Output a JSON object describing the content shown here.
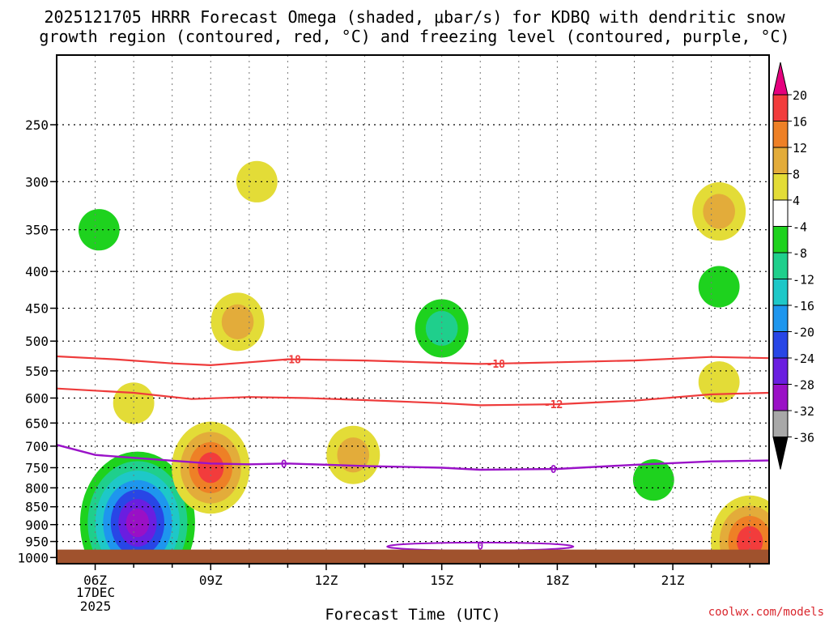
{
  "chart_data": {
    "type": "heatmap",
    "title_lines": [
      "2025121705 HRRR Forecast Omega (shaded, μbar/s) for KDBQ with dendritic snow",
      "growth region (contoured, red, °C) and freezing level (contoured, purple, °C)"
    ],
    "xlabel": "Forecast Time (UTC)",
    "ylabel": "",
    "credit": "coolwx.com/models",
    "x_ticks": [
      "06Z",
      "09Z",
      "12Z",
      "15Z",
      "18Z",
      "21Z"
    ],
    "x_date_label": [
      "17DEC",
      "2025"
    ],
    "x_range_hours": [
      5,
      23.5
    ],
    "y_ticks": [
      "250",
      "300",
      "350",
      "400",
      "450",
      "500",
      "550",
      "600",
      "650",
      "700",
      "750",
      "800",
      "850",
      "900",
      "950",
      "1000"
    ],
    "y_range_hpa": [
      200,
      1020
    ],
    "y_scale": "log-pressure",
    "grid": true,
    "colorbar": {
      "labels": [
        "20",
        "16",
        "12",
        "8",
        "4",
        "-4",
        "-8",
        "-12",
        "-16",
        "-20",
        "-24",
        "-28",
        "-32",
        "-36"
      ],
      "colors": [
        "#e5007e",
        "#f23c3c",
        "#ee8026",
        "#e3ac3a",
        "#e3dc37",
        "#ffffff",
        "#1ed21e",
        "#1fcf8c",
        "#1ec8c8",
        "#1e96ee",
        "#2846e6",
        "#6a1ee0",
        "#9a10c6",
        "#a8a8a8",
        "#000000"
      ]
    },
    "omega_regions": [
      {
        "time_h": 6.1,
        "pressure_hpa": 350,
        "omega": -6
      },
      {
        "time_h": 7.0,
        "pressure_hpa": 610,
        "omega": 6
      },
      {
        "time_h": 7.1,
        "pressure_hpa": 895,
        "omega": -30
      },
      {
        "time_h": 9.0,
        "pressure_hpa": 750,
        "omega": 18
      },
      {
        "time_h": 10.2,
        "pressure_hpa": 300,
        "omega": 6
      },
      {
        "time_h": 9.7,
        "pressure_hpa": 470,
        "omega": 10
      },
      {
        "time_h": 12.7,
        "pressure_hpa": 720,
        "omega": 10
      },
      {
        "time_h": 15.0,
        "pressure_hpa": 480,
        "omega": -10
      },
      {
        "time_h": 22.2,
        "pressure_hpa": 330,
        "omega": 10
      },
      {
        "time_h": 22.2,
        "pressure_hpa": 420,
        "omega": -6
      },
      {
        "time_h": 22.2,
        "pressure_hpa": 570,
        "omega": 6
      },
      {
        "time_h": 20.5,
        "pressure_hpa": 780,
        "omega": -6
      },
      {
        "time_h": 23.0,
        "pressure_hpa": 950,
        "omega": 18
      }
    ],
    "dendritic_contours": [
      {
        "label": "-18",
        "temp_c": -18,
        "label_time_h": 11.1,
        "label2_time_h": 16.4,
        "points": [
          [
            5.0,
            525
          ],
          [
            6.5,
            530
          ],
          [
            8,
            537
          ],
          [
            9,
            540
          ],
          [
            10,
            535
          ],
          [
            11,
            530
          ],
          [
            13,
            532
          ],
          [
            15,
            536
          ],
          [
            16,
            538
          ],
          [
            18,
            535
          ],
          [
            20,
            532
          ],
          [
            22,
            526
          ],
          [
            23.5,
            528
          ]
        ]
      },
      {
        "label": "-12",
        "temp_c": -12,
        "label_time_h": 17.9,
        "points": [
          [
            5.0,
            582
          ],
          [
            7,
            590
          ],
          [
            8.5,
            602
          ],
          [
            10,
            598
          ],
          [
            11.5,
            600
          ],
          [
            13,
            604
          ],
          [
            15,
            610
          ],
          [
            16,
            614
          ],
          [
            18,
            612
          ],
          [
            20,
            605
          ],
          [
            22,
            593
          ],
          [
            23.5,
            590
          ]
        ]
      }
    ],
    "freezing_level_contour": {
      "label": "0",
      "temp_c": 0,
      "label_times_h": [
        10.9,
        17.9
      ],
      "points": [
        [
          5.0,
          697
        ],
        [
          6,
          720
        ],
        [
          7.5,
          730
        ],
        [
          9,
          740
        ],
        [
          10,
          742
        ],
        [
          11,
          740
        ],
        [
          13,
          746
        ],
        [
          15,
          750
        ],
        [
          16,
          755
        ],
        [
          18,
          753
        ],
        [
          20,
          743
        ],
        [
          22,
          735
        ],
        [
          23.5,
          733
        ]
      ]
    },
    "freezing_level_surface": {
      "label": "0",
      "label_time_h": 16.0,
      "pressure_hpa": 968
    },
    "terrain_pressure_hpa": 975
  }
}
